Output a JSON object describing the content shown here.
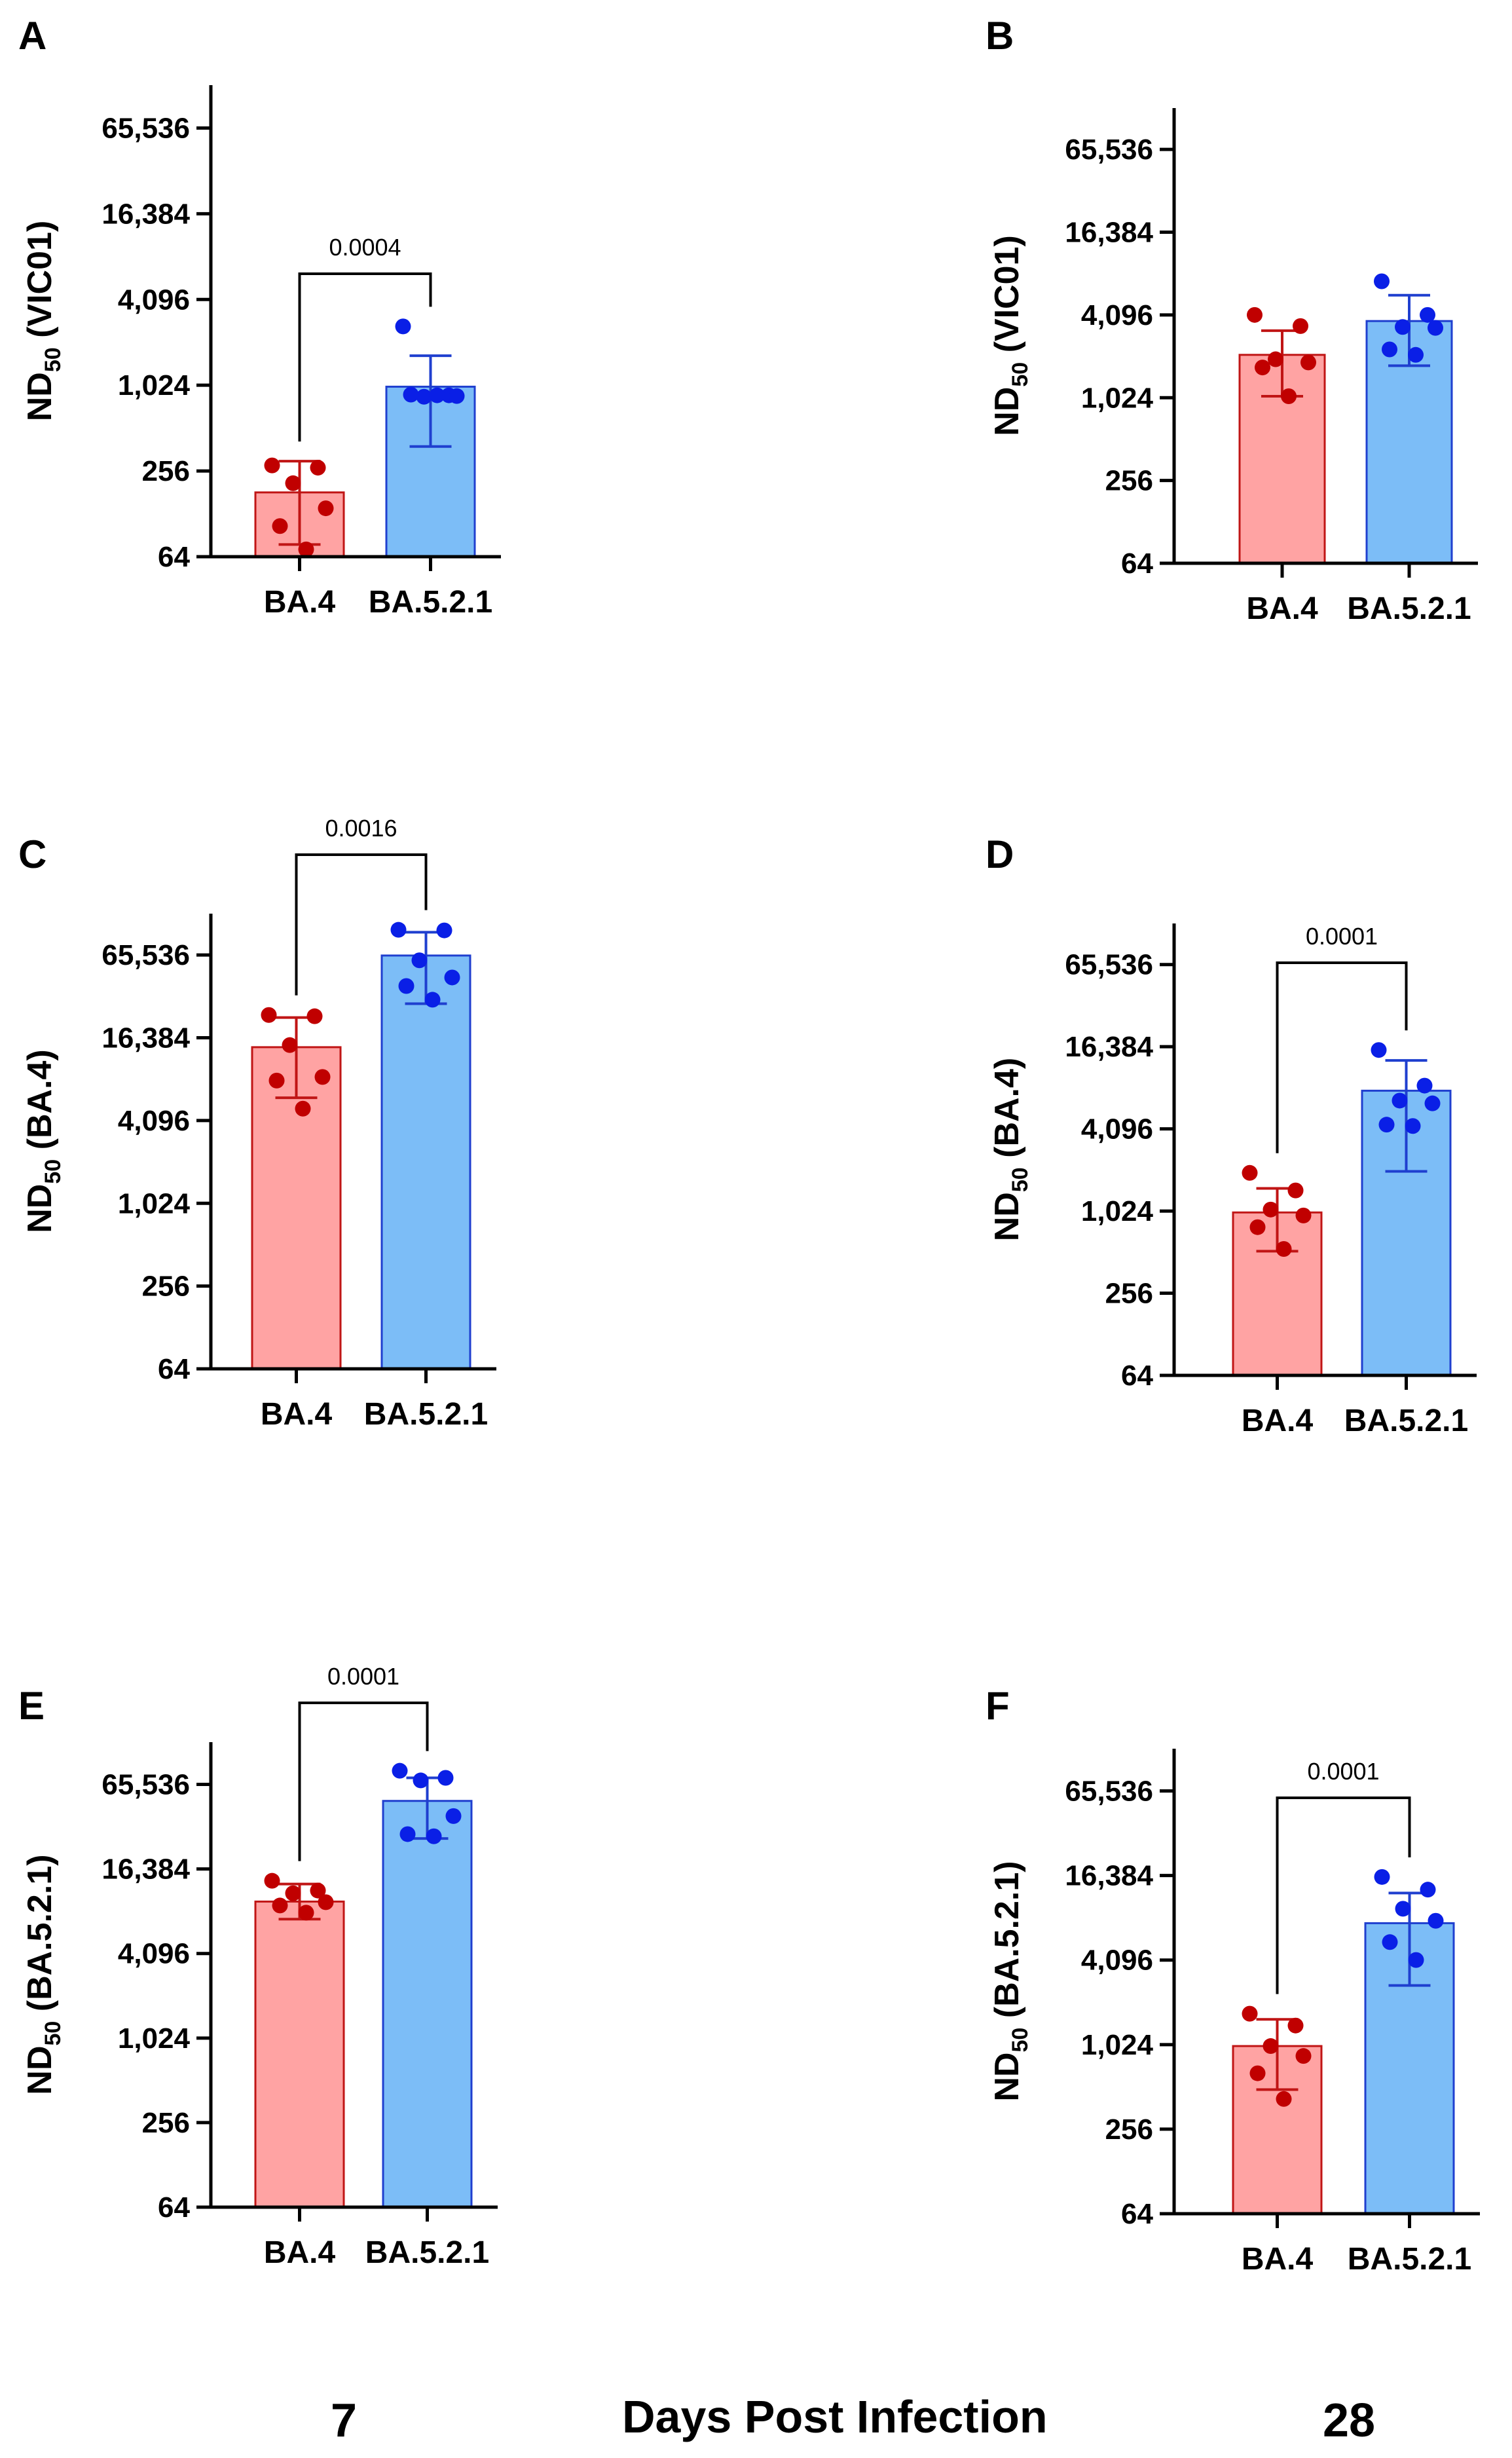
{
  "figure": {
    "bottom_labels": {
      "day7": "7",
      "axis_title": "Days Post Infection",
      "day28": "28"
    }
  },
  "colors": {
    "ba4_fill": "#ffa3a3",
    "ba4_stroke": "#c01515",
    "ba4_dot": "#c00000",
    "ba521_fill": "#7cbdf7",
    "ba521_stroke": "#1f3fcf",
    "ba521_dot": "#0a1fe6"
  },
  "chart_data": [
    {
      "panel": "A",
      "type": "bar",
      "ylabel_main": "ND",
      "ylabel_sub": "50",
      "ylabel_suffix": " (VIC01)",
      "yscale": "log2",
      "ylim": [
        64,
        131072
      ],
      "yticks": [
        64,
        256,
        1024,
        4096,
        16384,
        65536
      ],
      "ytick_labels": [
        "64",
        "256",
        "1,024",
        "4,096",
        "16,384",
        "65,536"
      ],
      "categories": [
        "BA.4",
        "BA.5.2.1"
      ],
      "bar_values": [
        181,
        1000
      ],
      "error_low": [
        78,
        380
      ],
      "error_high": [
        300,
        1650
      ],
      "points": [
        [
          280,
          270,
          210,
          140,
          105,
          72
        ],
        [
          2650,
          870,
          850,
          860,
          880,
          870
        ]
      ],
      "pvalue": "0.0004"
    },
    {
      "panel": "B",
      "type": "bar",
      "ylabel_main": "ND",
      "ylabel_sub": "50",
      "ylabel_suffix": " (VIC01)",
      "yscale": "log2",
      "ylim": [
        64,
        131072
      ],
      "yticks": [
        64,
        256,
        1024,
        4096,
        16384,
        65536
      ],
      "ytick_labels": [
        "64",
        "256",
        "1,024",
        "4,096",
        "16,384",
        "65,536"
      ],
      "categories": [
        "BA.4",
        "BA.5.2.1"
      ],
      "bar_values": [
        2100,
        3700
      ],
      "error_low": [
        1050,
        1750
      ],
      "error_high": [
        3150,
        5700
      ],
      "points": [
        [
          4100,
          3400,
          1950,
          1850,
          1700,
          1050
        ],
        [
          7200,
          4100,
          3350,
          3300,
          2300,
          2100
        ]
      ],
      "pvalue": null
    },
    {
      "panel": "C",
      "type": "bar",
      "ylabel_main": "ND",
      "ylabel_sub": "50",
      "ylabel_suffix": " (BA.4)",
      "yscale": "log2",
      "ylim": [
        64,
        131072
      ],
      "yticks": [
        64,
        256,
        1024,
        4096,
        16384,
        65536
      ],
      "ytick_labels": [
        "64",
        "256",
        "1,024",
        "4,096",
        "16,384",
        "65,536"
      ],
      "categories": [
        "BA.4",
        "BA.5.2.1"
      ],
      "bar_values": [
        14000,
        65000
      ],
      "error_low": [
        6000,
        29000
      ],
      "error_high": [
        23000,
        96000
      ],
      "points": [
        [
          24000,
          23500,
          14500,
          8500,
          8000,
          5000
        ],
        [
          100000,
          99000,
          60000,
          45000,
          39000,
          31000
        ]
      ],
      "pvalue": "0.0016"
    },
    {
      "panel": "D",
      "type": "bar",
      "ylabel_main": "ND",
      "ylabel_sub": "50",
      "ylabel_suffix": " (BA.4)",
      "yscale": "log2",
      "ylim": [
        64,
        131072
      ],
      "yticks": [
        64,
        256,
        1024,
        4096,
        16384,
        65536
      ],
      "ytick_labels": [
        "64",
        "256",
        "1,024",
        "4,096",
        "16,384",
        "65,536"
      ],
      "categories": [
        "BA.4",
        "BA.5.2.1"
      ],
      "bar_values": [
        1000,
        7800
      ],
      "error_low": [
        520,
        2000
      ],
      "error_high": [
        1500,
        13000
      ],
      "points": [
        [
          1950,
          1450,
          1050,
          950,
          780,
          540
        ],
        [
          15500,
          8500,
          6600,
          6300,
          4400,
          4300
        ]
      ],
      "pvalue": "0.0001"
    },
    {
      "panel": "E",
      "type": "bar",
      "ylabel_main": "ND",
      "ylabel_sub": "50",
      "ylabel_suffix": " (BA.5.2.1)",
      "yscale": "log2",
      "ylim": [
        64,
        131072
      ],
      "yticks": [
        64,
        256,
        1024,
        4096,
        16384,
        65536
      ],
      "ytick_labels": [
        "64",
        "256",
        "1,024",
        "4,096",
        "16,384",
        "65,536"
      ],
      "categories": [
        "BA.4",
        "BA.5.2.1"
      ],
      "bar_values": [
        9600,
        50000
      ],
      "error_low": [
        7200,
        27000
      ],
      "error_high": [
        12800,
        73000
      ],
      "points": [
        [
          13500,
          11500,
          11000,
          9500,
          9000,
          8000
        ],
        [
          82000,
          73000,
          70000,
          39000,
          29000,
          28000
        ]
      ],
      "pvalue": "0.0001"
    },
    {
      "panel": "F",
      "type": "bar",
      "ylabel_main": "ND",
      "ylabel_sub": "50",
      "ylabel_suffix": " (BA.5.2.1)",
      "yscale": "log2",
      "ylim": [
        64,
        131072
      ],
      "yticks": [
        64,
        256,
        1024,
        4096,
        16384,
        65536
      ],
      "ytick_labels": [
        "64",
        "256",
        "1,024",
        "4,096",
        "16,384",
        "65,536"
      ],
      "categories": [
        "BA.4",
        "BA.5.2.1"
      ],
      "bar_values": [
        1000,
        7500
      ],
      "error_low": [
        490,
        2700
      ],
      "error_high": [
        1550,
        12300
      ],
      "points": [
        [
          1700,
          1400,
          1000,
          850,
          640,
          420
        ],
        [
          16000,
          13000,
          9500,
          7800,
          5500,
          4100
        ]
      ],
      "pvalue": "0.0001"
    }
  ]
}
